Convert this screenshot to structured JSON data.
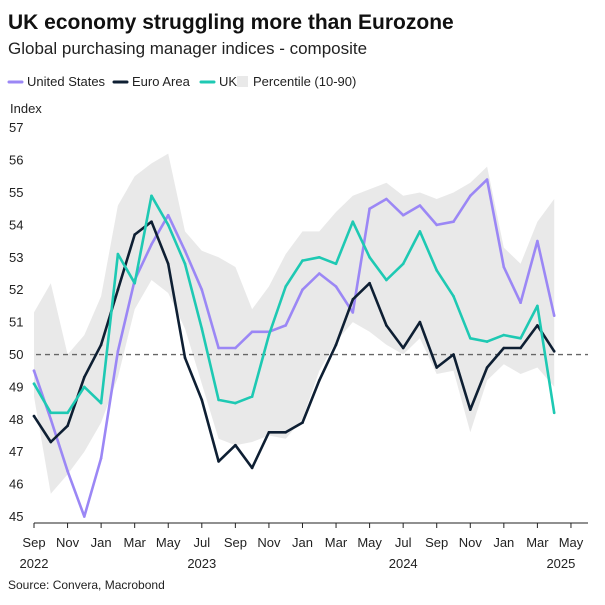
{
  "chart_data": {
    "type": "line",
    "title": "UK economy struggling more than Eurozone",
    "subtitle": "Global purchasing manager indices - composite",
    "ylabel": "Index",
    "ylim": [
      44.8,
      57.3
    ],
    "yticks": [
      45,
      46,
      47,
      48,
      49,
      50,
      51,
      52,
      53,
      54,
      55,
      56,
      57
    ],
    "reference_line": 50,
    "x_start": "2022-09",
    "x_tick_labels": [
      "Sep",
      "Nov",
      "Jan",
      "Mar",
      "May",
      "Jul",
      "Sep",
      "Nov",
      "Jan",
      "Mar",
      "May",
      "Jul",
      "Sep",
      "Nov",
      "Jan",
      "Mar",
      "May"
    ],
    "year_labels": [
      {
        "label": "2022",
        "month_index": 0
      },
      {
        "label": "2023",
        "month_index": 10
      },
      {
        "label": "2024",
        "month_index": 22
      },
      {
        "label": "2025",
        "month_index": 31.4
      }
    ],
    "legend": [
      "United States",
      "Euro Area",
      "UK",
      "Percentile (10-90)"
    ],
    "series": [
      {
        "name": "United States",
        "color": "#9b87f5",
        "values": [
          49.5,
          48.0,
          46.4,
          45.0,
          46.8,
          50.1,
          52.3,
          53.4,
          54.3,
          53.2,
          52.0,
          50.2,
          50.2,
          50.7,
          50.7,
          50.9,
          52.0,
          52.5,
          52.1,
          51.3,
          54.5,
          54.8,
          54.3,
          54.6,
          54.0,
          54.1,
          54.9,
          55.4,
          52.7,
          51.6,
          53.5,
          51.2
        ]
      },
      {
        "name": "Euro Area",
        "color": "#0e1f33",
        "values": [
          48.1,
          47.3,
          47.8,
          49.3,
          50.3,
          52.0,
          53.7,
          54.1,
          52.8,
          49.9,
          48.6,
          46.7,
          47.2,
          46.5,
          47.6,
          47.6,
          47.9,
          49.2,
          50.3,
          51.7,
          52.2,
          50.9,
          50.2,
          51.0,
          49.6,
          50.0,
          48.3,
          49.6,
          50.2,
          50.2,
          50.9,
          50.1
        ]
      },
      {
        "name": "UK",
        "color": "#1ec9b3",
        "values": [
          49.1,
          48.2,
          48.2,
          49.0,
          48.5,
          53.1,
          52.2,
          54.9,
          54.0,
          52.8,
          50.8,
          48.6,
          48.5,
          48.7,
          50.6,
          52.1,
          52.9,
          53.0,
          52.8,
          54.1,
          53.0,
          52.3,
          52.8,
          53.8,
          52.6,
          51.8,
          50.5,
          50.4,
          50.6,
          50.5,
          51.5,
          48.2
        ]
      },
      {
        "name": "Percentile (10-90)",
        "color": "#e9e9e9",
        "upper": [
          51.3,
          52.2,
          50.0,
          50.6,
          51.8,
          54.6,
          55.5,
          55.9,
          56.2,
          53.8,
          53.2,
          53.0,
          52.7,
          51.4,
          52.1,
          53.1,
          53.8,
          53.8,
          54.4,
          54.9,
          55.1,
          55.3,
          54.9,
          55.0,
          54.8,
          55.0,
          55.3,
          55.8,
          53.3,
          52.8,
          54.1,
          54.8
        ],
        "lower": [
          48.7,
          45.7,
          46.3,
          47.0,
          47.9,
          49.3,
          51.4,
          52.3,
          51.9,
          50.8,
          49.1,
          47.4,
          47.2,
          47.3,
          47.5,
          47.4,
          48.0,
          49.5,
          50.4,
          51.0,
          50.7,
          50.3,
          50.0,
          50.5,
          49.4,
          49.5,
          47.6,
          49.2,
          49.7,
          49.4,
          49.6,
          49.0
        ]
      }
    ]
  },
  "source": "Source: Convera, Macrobond"
}
